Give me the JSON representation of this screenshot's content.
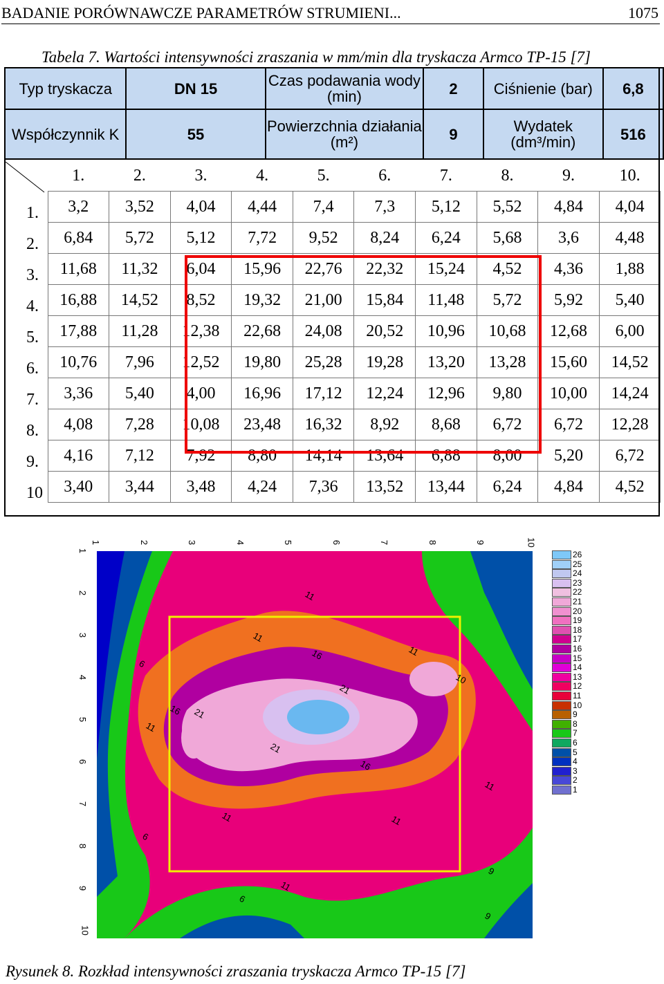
{
  "header": {
    "title": "BADANIE PORÓWNAWCZE PARAMETRÓW STRUMIENI...",
    "page": "1075"
  },
  "table_caption": "Tabela 7. Wartości intensywności zraszania w mm/min dla tryskacza Armco TP-15 [7]",
  "info": {
    "typ_label": "Typ tryskacza",
    "typ_value": "DN 15",
    "czas_label": "Czas podawania wody (min)",
    "czas_value": "2",
    "cisnienie_label": "Ciśnienie (bar)",
    "cisnienie_value": "6,8",
    "wsp_label": "Współczynnik K",
    "wsp_value": "55",
    "pow_label": "Powierzchnia działania (m²)",
    "pow_value": "9",
    "wyd_label": "Wydatek (dm³/min)",
    "wyd_value": "516"
  },
  "columns": [
    "1.",
    "2.",
    "3.",
    "4.",
    "5.",
    "6.",
    "7.",
    "8.",
    "9.",
    "10."
  ],
  "rows": [
    {
      "label": "1.",
      "values": [
        "3,2",
        "3,52",
        "4,04",
        "4,44",
        "7,4",
        "7,3",
        "5,12",
        "5,52",
        "4,84",
        "4,04"
      ]
    },
    {
      "label": "2.",
      "values": [
        "6,84",
        "5,72",
        "5,12",
        "7,72",
        "9,52",
        "8,24",
        "6,24",
        "5,68",
        "3,6",
        "4,48"
      ]
    },
    {
      "label": "3.",
      "values": [
        "11,68",
        "11,32",
        "6,04",
        "15,96",
        "22,76",
        "22,32",
        "15,24",
        "4,52",
        "4,36",
        "1,88"
      ]
    },
    {
      "label": "4.",
      "values": [
        "16,88",
        "14,52",
        "8,52",
        "19,32",
        "21,00",
        "15,84",
        "11,48",
        "5,72",
        "5,92",
        "5,40"
      ]
    },
    {
      "label": "5.",
      "values": [
        "17,88",
        "11,28",
        "12,38",
        "22,68",
        "24,08",
        "20,52",
        "10,96",
        "10,68",
        "12,68",
        "6,00"
      ]
    },
    {
      "label": "6.",
      "values": [
        "10,76",
        "7,96",
        "12,52",
        "19,80",
        "25,28",
        "19,28",
        "13,20",
        "13,28",
        "15,60",
        "14,52"
      ]
    },
    {
      "label": "7.",
      "values": [
        "3,36",
        "5,40",
        "4,00",
        "16,96",
        "17,12",
        "12,24",
        "12,96",
        "9,80",
        "10,00",
        "14,24"
      ]
    },
    {
      "label": "8.",
      "values": [
        "4,08",
        "7,28",
        "10,08",
        "23,48",
        "16,32",
        "8,92",
        "8,68",
        "6,72",
        "6,72",
        "12,28"
      ]
    },
    {
      "label": "9.",
      "values": [
        "4,16",
        "7,12",
        "7,92",
        "8,80",
        "14,14",
        "13,64",
        "6,88",
        "8,00",
        "5,20",
        "6,72"
      ]
    },
    {
      "label": "10",
      "values": [
        "3,40",
        "3,44",
        "3,48",
        "4,24",
        "7,36",
        "13,52",
        "13,44",
        "6,24",
        "4,84",
        "4,52"
      ]
    }
  ],
  "figure": {
    "x_ticks": [
      "1",
      "2",
      "3",
      "4",
      "5",
      "6",
      "7",
      "8",
      "9",
      "10"
    ],
    "y_ticks": [
      "1",
      "2",
      "3",
      "4",
      "5",
      "6",
      "7",
      "8",
      "9",
      "10"
    ],
    "contour_labels": [
      "11",
      "6",
      "11",
      "16",
      "11",
      "21",
      "10",
      "9",
      "16",
      "21",
      "11",
      "21",
      "16",
      "11",
      "11",
      "11",
      "6",
      "6",
      "11",
      "9"
    ],
    "legend": [
      "26",
      "25",
      "24",
      "23",
      "22",
      "21",
      "20",
      "19",
      "18",
      "17",
      "16",
      "15",
      "14",
      "13",
      "12",
      "11",
      "10",
      "9",
      "8",
      "7",
      "6",
      "5",
      "4",
      "3",
      "2",
      "1"
    ],
    "colors": {
      "bg": "#e8007a",
      "hi": "#f0a8d8",
      "peak": "#6ab8f0",
      "low": "#0050a8",
      "green": "#18c818",
      "orange": "#f07020"
    }
  },
  "figure_caption": "Rysunek 8. Rozkład intensywności zraszania tryskacza Armco TP-15 [7]"
}
